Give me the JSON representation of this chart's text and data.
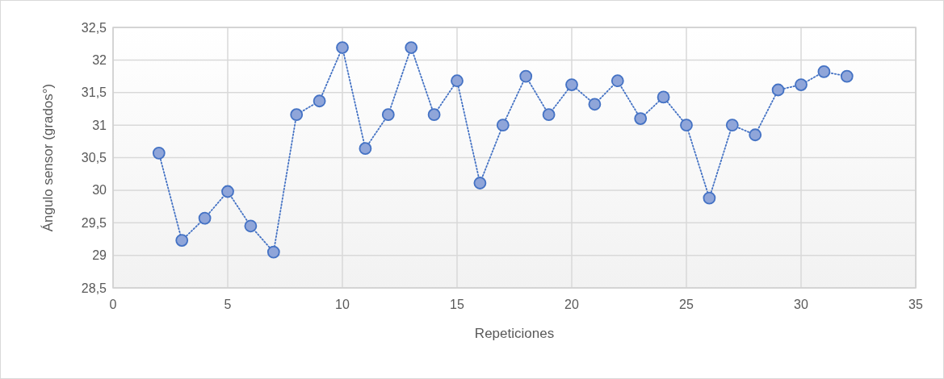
{
  "chart_data": {
    "type": "line",
    "xlabel": "Repeticiones",
    "ylabel": "Ángulo sensor (grados°)",
    "x": [
      2,
      3,
      4,
      5,
      6,
      7,
      8,
      9,
      10,
      11,
      12,
      13,
      14,
      15,
      16,
      17,
      18,
      19,
      20,
      21,
      22,
      23,
      24,
      25,
      26,
      27,
      28,
      29,
      30,
      31,
      32
    ],
    "series": [
      {
        "color": "#4472c4",
        "values": [
          30.57,
          29.23,
          29.57,
          29.98,
          29.45,
          29.05,
          31.16,
          31.37,
          32.19,
          30.64,
          31.16,
          32.19,
          31.16,
          31.68,
          30.11,
          31.0,
          31.75,
          31.16,
          31.62,
          31.32,
          31.68,
          31.1,
          31.43,
          31.0,
          29.88,
          31.0,
          30.85,
          31.54,
          31.62,
          31.82,
          31.75
        ]
      }
    ],
    "xlim": [
      0,
      35
    ],
    "xticks": [
      0,
      5,
      10,
      15,
      20,
      25,
      30,
      35
    ],
    "ylim": [
      28.5,
      32.5
    ],
    "yticks": [
      {
        "value": 28.5,
        "label": "28,5"
      },
      29,
      {
        "value": 29.5,
        "label": "29,5"
      },
      30,
      {
        "value": 30.5,
        "label": "30,5"
      },
      31,
      {
        "value": 31.5,
        "label": "31,5"
      },
      32,
      {
        "value": 32.5,
        "label": "32,5"
      }
    ],
    "grid": true,
    "marker": "circle",
    "line_style": "dotted"
  }
}
